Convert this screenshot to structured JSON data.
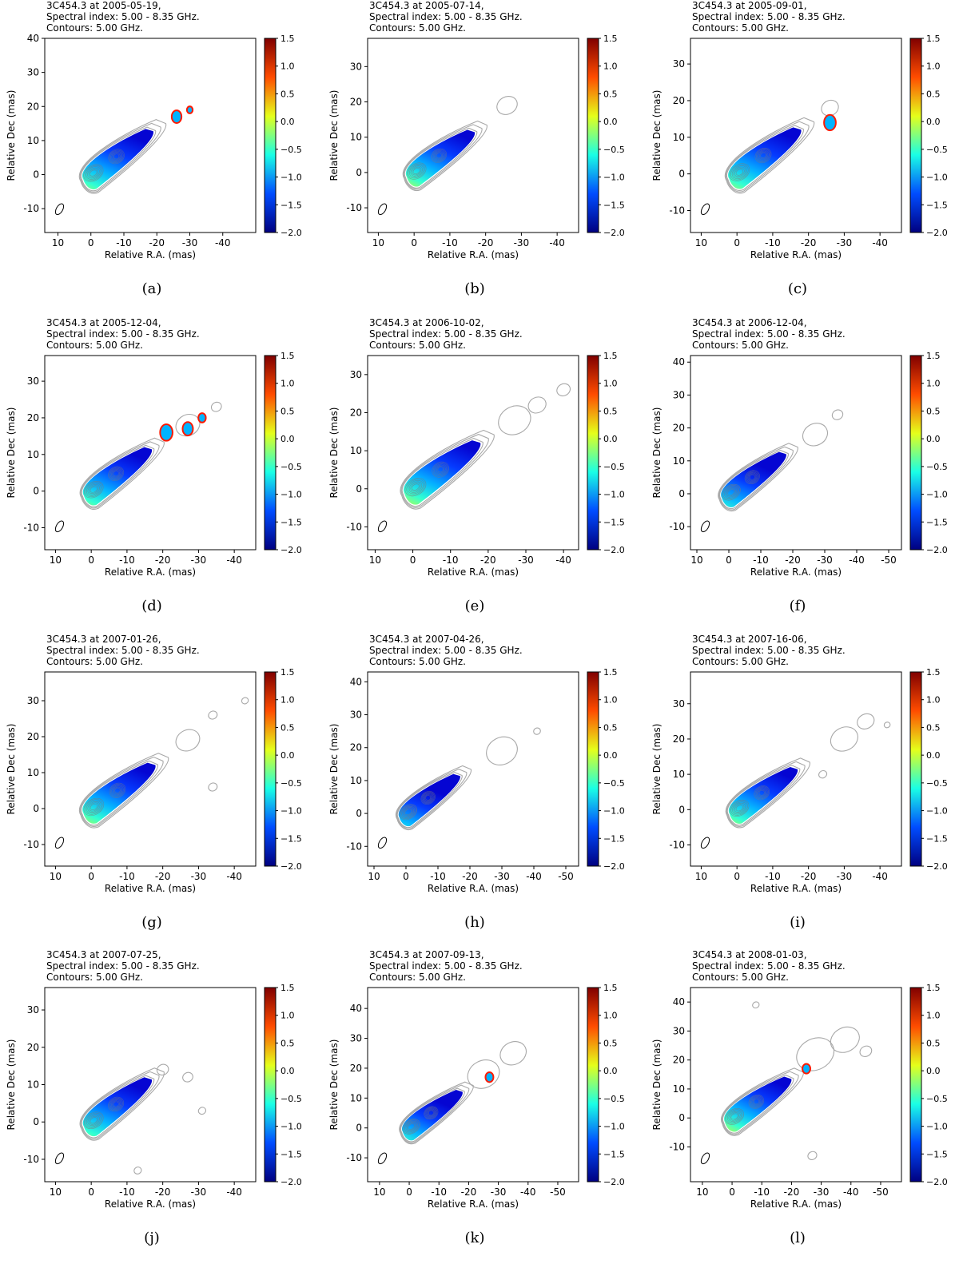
{
  "chart_data": [
    {
      "type": "heatmap",
      "panel_label": "(a)",
      "header": [
        "3C454.3 at 2005-05-19,",
        "Spectral index: 5.00 - 8.35 GHz.",
        "Contours: 5.00 GHz."
      ],
      "xlabel": "Relative R.A. (mas)",
      "ylabel": "Relative Dec (mas)",
      "xticks": [
        10,
        0,
        -10,
        -20,
        -30,
        -40
      ],
      "xtick_labels": [
        "10",
        "0",
        "-10",
        "-20",
        "-30",
        "-40"
      ],
      "yticks": [
        -10,
        0,
        10,
        20,
        30,
        40
      ],
      "ytick_labels": [
        "-10",
        "0",
        "10",
        "20",
        "30",
        "40"
      ],
      "xlim": [
        14,
        -50
      ],
      "ylim": [
        -17,
        40
      ],
      "colorbar_ticks": [
        "1.5",
        "1.0",
        "0.5",
        "0.0",
        "−0.5",
        "−1.0",
        "−1.5",
        "−2.0"
      ],
      "jet_end_ra": -19,
      "features": [
        [
          -26,
          17,
          1.0
        ],
        [
          -30,
          19,
          0.4
        ]
      ],
      "extra_contours": []
    },
    {
      "type": "heatmap",
      "panel_label": "(b)",
      "header": [
        "3C454.3 at 2005-07-14,",
        "Spectral index: 5.00 - 8.35 GHz.",
        "Contours: 5.00 GHz."
      ],
      "xlabel": "Relative R.A. (mas)",
      "ylabel": "Relative Dec (mas)",
      "xticks": [
        10,
        0,
        -10,
        -20,
        -30,
        -40
      ],
      "xtick_labels": [
        "10",
        "0",
        "-10",
        "-20",
        "-30",
        "-40"
      ],
      "yticks": [
        -10,
        0,
        10,
        20,
        30
      ],
      "ytick_labels": [
        "-10",
        "0",
        "10",
        "20",
        "30"
      ],
      "xlim": [
        13,
        -46
      ],
      "ylim": [
        -17,
        38
      ],
      "colorbar_ticks": [
        "1.5",
        "1.0",
        "0.5",
        "0.0",
        "−0.5",
        "−1.0",
        "−1.5",
        "−2.0"
      ],
      "jet_end_ra": -17,
      "features": [],
      "extra_contours": [
        [
          -26,
          19,
          2.5
        ]
      ]
    },
    {
      "type": "heatmap",
      "panel_label": "(c)",
      "header": [
        "3C454.3 at 2005-09-01,",
        "Spectral index: 5.00 - 8.35 GHz.",
        "Contours: 5.00 GHz."
      ],
      "xlabel": "Relative R.A. (mas)",
      "ylabel": "Relative Dec (mas)",
      "xticks": [
        10,
        0,
        -10,
        -20,
        -30,
        -40
      ],
      "xtick_labels": [
        "10",
        "0",
        "-10",
        "-20",
        "-30",
        "-40"
      ],
      "yticks": [
        -10,
        0,
        10,
        20,
        30
      ],
      "ytick_labels": [
        "-10",
        "0",
        "10",
        "20",
        "30"
      ],
      "xlim": [
        13,
        -46
      ],
      "ylim": [
        -16,
        37
      ],
      "colorbar_ticks": [
        "1.5",
        "1.0",
        "0.5",
        "0.0",
        "−0.5",
        "−1.0",
        "−1.5",
        "−2.0"
      ],
      "jet_end_ra": -18,
      "features": [
        [
          -26,
          14,
          1.2
        ]
      ],
      "extra_contours": [
        [
          -26,
          18,
          2.0
        ]
      ]
    },
    {
      "type": "heatmap",
      "panel_label": "(d)",
      "header": [
        "3C454.3 at 2005-12-04,",
        "Spectral index: 5.00 - 8.35 GHz.",
        "Contours: 5.00 GHz."
      ],
      "xlabel": "Relative R.A. (mas)",
      "ylabel": "Relative Dec (mas)",
      "xticks": [
        10,
        0,
        -10,
        -20,
        -30,
        -40
      ],
      "xtick_labels": [
        "10",
        "0",
        "-10",
        "-20",
        "-30",
        "-40"
      ],
      "yticks": [
        -10,
        0,
        10,
        20,
        30
      ],
      "ytick_labels": [
        "-10",
        "0",
        "10",
        "20",
        "30"
      ],
      "xlim": [
        13,
        -46
      ],
      "ylim": [
        -16,
        37
      ],
      "colorbar_ticks": [
        "1.5",
        "1.0",
        "0.5",
        "0.0",
        "−0.5",
        "−1.0",
        "−1.5",
        "−2.0"
      ],
      "jet_end_ra": -17,
      "features": [
        [
          -21,
          16,
          1.3
        ],
        [
          -27,
          17,
          1.0
        ],
        [
          -31,
          20,
          0.6
        ]
      ],
      "extra_contours": [
        [
          -27,
          18,
          3.0
        ],
        [
          -35,
          23,
          1.0
        ]
      ]
    },
    {
      "type": "heatmap",
      "panel_label": "(e)",
      "header": [
        "3C454.3 at 2006-10-02,",
        "Spectral index: 5.00 - 8.35 GHz.",
        "Contours: 5.00 GHz."
      ],
      "xlabel": "Relative R.A. (mas)",
      "ylabel": "Relative Dec (mas)",
      "xticks": [
        10,
        0,
        -10,
        -20,
        -30,
        -40
      ],
      "xtick_labels": [
        "10",
        "0",
        "-10",
        "-20",
        "-30",
        "-40"
      ],
      "yticks": [
        -10,
        0,
        10,
        20,
        30
      ],
      "ytick_labels": [
        "-10",
        "0",
        "10",
        "20",
        "30"
      ],
      "xlim": [
        12,
        -44
      ],
      "ylim": [
        -16,
        35
      ],
      "colorbar_ticks": [
        "1.5",
        "1.0",
        "0.5",
        "0.0",
        "−0.5",
        "−1.0",
        "−1.5",
        "−2.0"
      ],
      "jet_end_ra": -18,
      "features": [],
      "extra_contours": [
        [
          -27,
          18,
          4.0
        ],
        [
          -33,
          22,
          2.0
        ],
        [
          -40,
          26,
          1.4
        ]
      ]
    },
    {
      "type": "heatmap",
      "panel_label": "(f)",
      "header": [
        "3C454.3 at 2006-12-04,",
        "Spectral index: 5.00 - 8.35 GHz.",
        "Contours: 5.00 GHz."
      ],
      "xlabel": "Relative R.A. (mas)",
      "ylabel": "Relative Dec (mas)",
      "xticks": [
        10,
        0,
        -10,
        -20,
        -30,
        -40,
        -50
      ],
      "xtick_labels": [
        "10",
        "0",
        "-10",
        "-20",
        "-30",
        "-40",
        "-50"
      ],
      "yticks": [
        -10,
        0,
        10,
        20,
        30,
        40
      ],
      "ytick_labels": [
        "-10",
        "0",
        "10",
        "20",
        "30",
        "40"
      ],
      "xlim": [
        12,
        -54
      ],
      "ylim": [
        -17,
        42
      ],
      "colorbar_ticks": [
        "1.5",
        "1.0",
        "0.5",
        "0.0",
        "−0.5",
        "−1.0",
        "−1.5",
        "−2.0"
      ],
      "jet_end_ra": -18,
      "features": [],
      "extra_contours": [
        [
          -27,
          18,
          3.5
        ],
        [
          -34,
          24,
          1.2
        ]
      ]
    },
    {
      "type": "heatmap",
      "panel_label": "(g)",
      "header": [
        "3C454.3 at 2007-01-26,",
        "Spectral index: 5.00 - 8.35 GHz.",
        "Contours: 5.00 GHz."
      ],
      "xlabel": "Relative R.A. (mas)",
      "ylabel": "Relative Dec (mas)",
      "xticks": [
        10,
        0,
        -10,
        -20,
        -30,
        -40
      ],
      "xtick_labels": [
        "10",
        "0",
        "-10",
        "-20",
        "-30",
        "-40"
      ],
      "yticks": [
        -10,
        0,
        10,
        20,
        30
      ],
      "ytick_labels": [
        "-10",
        "0",
        "10",
        "20",
        "30"
      ],
      "xlim": [
        13,
        -46
      ],
      "ylim": [
        -16,
        38
      ],
      "colorbar_ticks": [
        "1.5",
        "1.0",
        "0.5",
        "0.0",
        "−0.5",
        "−1.0",
        "−1.5",
        "−2.0"
      ],
      "jet_end_ra": -18,
      "features": [],
      "extra_contours": [
        [
          -27,
          19,
          3.0
        ],
        [
          -34,
          26,
          0.8
        ],
        [
          -43,
          30,
          0.5
        ],
        [
          -34,
          6,
          0.8
        ]
      ]
    },
    {
      "type": "heatmap",
      "panel_label": "(h)",
      "header": [
        "3C454.3 at 2007-04-26,",
        "Spectral index: 5.00 - 8.35 GHz.",
        "Contours: 5.00 GHz."
      ],
      "xlabel": "Relative R.A. (mas)",
      "ylabel": "Relative Dec (mas)",
      "xticks": [
        10,
        0,
        -10,
        -20,
        -30,
        -40,
        -50
      ],
      "xtick_labels": [
        "10",
        "0",
        "-10",
        "-20",
        "-30",
        "-40",
        "-50"
      ],
      "yticks": [
        -10,
        0,
        10,
        20,
        30,
        40
      ],
      "ytick_labels": [
        "-10",
        "0",
        "10",
        "20",
        "30",
        "40"
      ],
      "xlim": [
        12,
        -54
      ],
      "ylim": [
        -16,
        43
      ],
      "colorbar_ticks": [
        "1.5",
        "1.0",
        "0.5",
        "0.0",
        "−0.5",
        "−1.0",
        "−1.5",
        "−2.0"
      ],
      "jet_end_ra": -17,
      "features": [],
      "extra_contours": [
        [
          -30,
          19,
          4.5
        ],
        [
          -41,
          25,
          0.6
        ]
      ]
    },
    {
      "type": "heatmap",
      "panel_label": "(i)",
      "header": [
        "3C454.3 at 2007-16-06,",
        "Spectral index: 5.00 - 8.35 GHz.",
        "Contours: 5.00 GHz."
      ],
      "xlabel": "Relative R.A. (mas)",
      "ylabel": "Relative Dec (mas)",
      "xticks": [
        10,
        0,
        -10,
        -20,
        -30,
        -40
      ],
      "xtick_labels": [
        "10",
        "0",
        "-10",
        "-20",
        "-30",
        "-40"
      ],
      "yticks": [
        -10,
        0,
        10,
        20,
        30
      ],
      "ytick_labels": [
        "-10",
        "0",
        "10",
        "20",
        "30"
      ],
      "xlim": [
        13,
        -46
      ],
      "ylim": [
        -16,
        39
      ],
      "colorbar_ticks": [
        "1.5",
        "1.0",
        "0.5",
        "0.0",
        "−0.5",
        "−1.0",
        "−1.5",
        "−2.0"
      ],
      "jet_end_ra": -17,
      "features": [],
      "extra_contours": [
        [
          -30,
          20,
          3.5
        ],
        [
          -36,
          25,
          2.0
        ],
        [
          -42,
          24,
          0.4
        ],
        [
          -24,
          10,
          0.7
        ]
      ]
    },
    {
      "type": "heatmap",
      "panel_label": "(j)",
      "header": [
        "3C454.3 at 2007-07-25,",
        "Spectral index: 5.00 - 8.35 GHz.",
        "Contours: 5.00 GHz."
      ],
      "xlabel": "Relative R.A. (mas)",
      "ylabel": "Relative Dec (mas)",
      "xticks": [
        10,
        0,
        -10,
        -20,
        -30,
        -40
      ],
      "xtick_labels": [
        "10",
        "0",
        "-10",
        "-20",
        "-30",
        "-40"
      ],
      "yticks": [
        -10,
        0,
        10,
        20,
        30
      ],
      "ytick_labels": [
        "-10",
        "0",
        "10",
        "20",
        "30"
      ],
      "xlim": [
        13,
        -46
      ],
      "ylim": [
        -16,
        36
      ],
      "colorbar_ticks": [
        "1.5",
        "1.0",
        "0.5",
        "0.0",
        "−0.5",
        "−1.0",
        "−1.5",
        "−2.0"
      ],
      "jet_end_ra": -17,
      "features": [],
      "extra_contours": [
        [
          -20,
          14,
          1.2
        ],
        [
          -27,
          12,
          1.0
        ],
        [
          -31,
          3,
          0.6
        ],
        [
          -13,
          -13,
          0.6
        ]
      ]
    },
    {
      "type": "heatmap",
      "panel_label": "(k)",
      "header": [
        "3C454.3 at 2007-09-13,",
        "Spectral index: 5.00 - 8.35 GHz.",
        "Contours: 5.00 GHz."
      ],
      "xlabel": "Relative R.A. (mas)",
      "ylabel": "Relative Dec (mas)",
      "xticks": [
        10,
        0,
        -10,
        -20,
        -30,
        -40,
        -50
      ],
      "xtick_labels": [
        "10",
        "0",
        "-10",
        "-20",
        "-30",
        "-40",
        "-50"
      ],
      "yticks": [
        -10,
        0,
        10,
        20,
        30,
        40
      ],
      "ytick_labels": [
        "-10",
        "0",
        "10",
        "20",
        "30",
        "40"
      ],
      "xlim": [
        14,
        -57
      ],
      "ylim": [
        -18,
        47
      ],
      "colorbar_ticks": [
        "1.5",
        "1.0",
        "0.5",
        "0.0",
        "−0.5",
        "−1.0",
        "−1.5",
        "−2.0"
      ],
      "jet_end_ra": -18,
      "features": [
        [
          -27,
          17,
          0.8
        ]
      ],
      "extra_contours": [
        [
          -25,
          18,
          5.0
        ],
        [
          -35,
          25,
          4.0
        ]
      ]
    },
    {
      "type": "heatmap",
      "panel_label": "(l)",
      "header": [
        "3C454.3 at 2008-01-03,",
        "Spectral index: 5.00 - 8.35 GHz.",
        "Contours: 5.00 GHz."
      ],
      "xlabel": "Relative R.A. (mas)",
      "ylabel": "Relative Dec (mas)",
      "xticks": [
        10,
        0,
        -10,
        -20,
        -30,
        -40,
        -50
      ],
      "xtick_labels": [
        "10",
        "0",
        "-10",
        "-20",
        "-30",
        "-40",
        "-50"
      ],
      "yticks": [
        -10,
        0,
        10,
        20,
        30,
        40
      ],
      "ytick_labels": [
        "-10",
        "0",
        "10",
        "20",
        "30",
        "40"
      ],
      "xlim": [
        14,
        -57
      ],
      "ylim": [
        -22,
        45
      ],
      "colorbar_ticks": [
        "1.5",
        "1.0",
        "0.5",
        "0.0",
        "−0.5",
        "−1.0",
        "−1.5",
        "−2.0"
      ],
      "jet_end_ra": -20,
      "features": [
        [
          -25,
          17,
          0.8
        ]
      ],
      "extra_contours": [
        [
          -28,
          22,
          6.0
        ],
        [
          -38,
          27,
          4.5
        ],
        [
          -45,
          23,
          1.5
        ],
        [
          -8,
          39,
          0.6
        ],
        [
          -27,
          -13,
          1.0
        ]
      ]
    }
  ]
}
